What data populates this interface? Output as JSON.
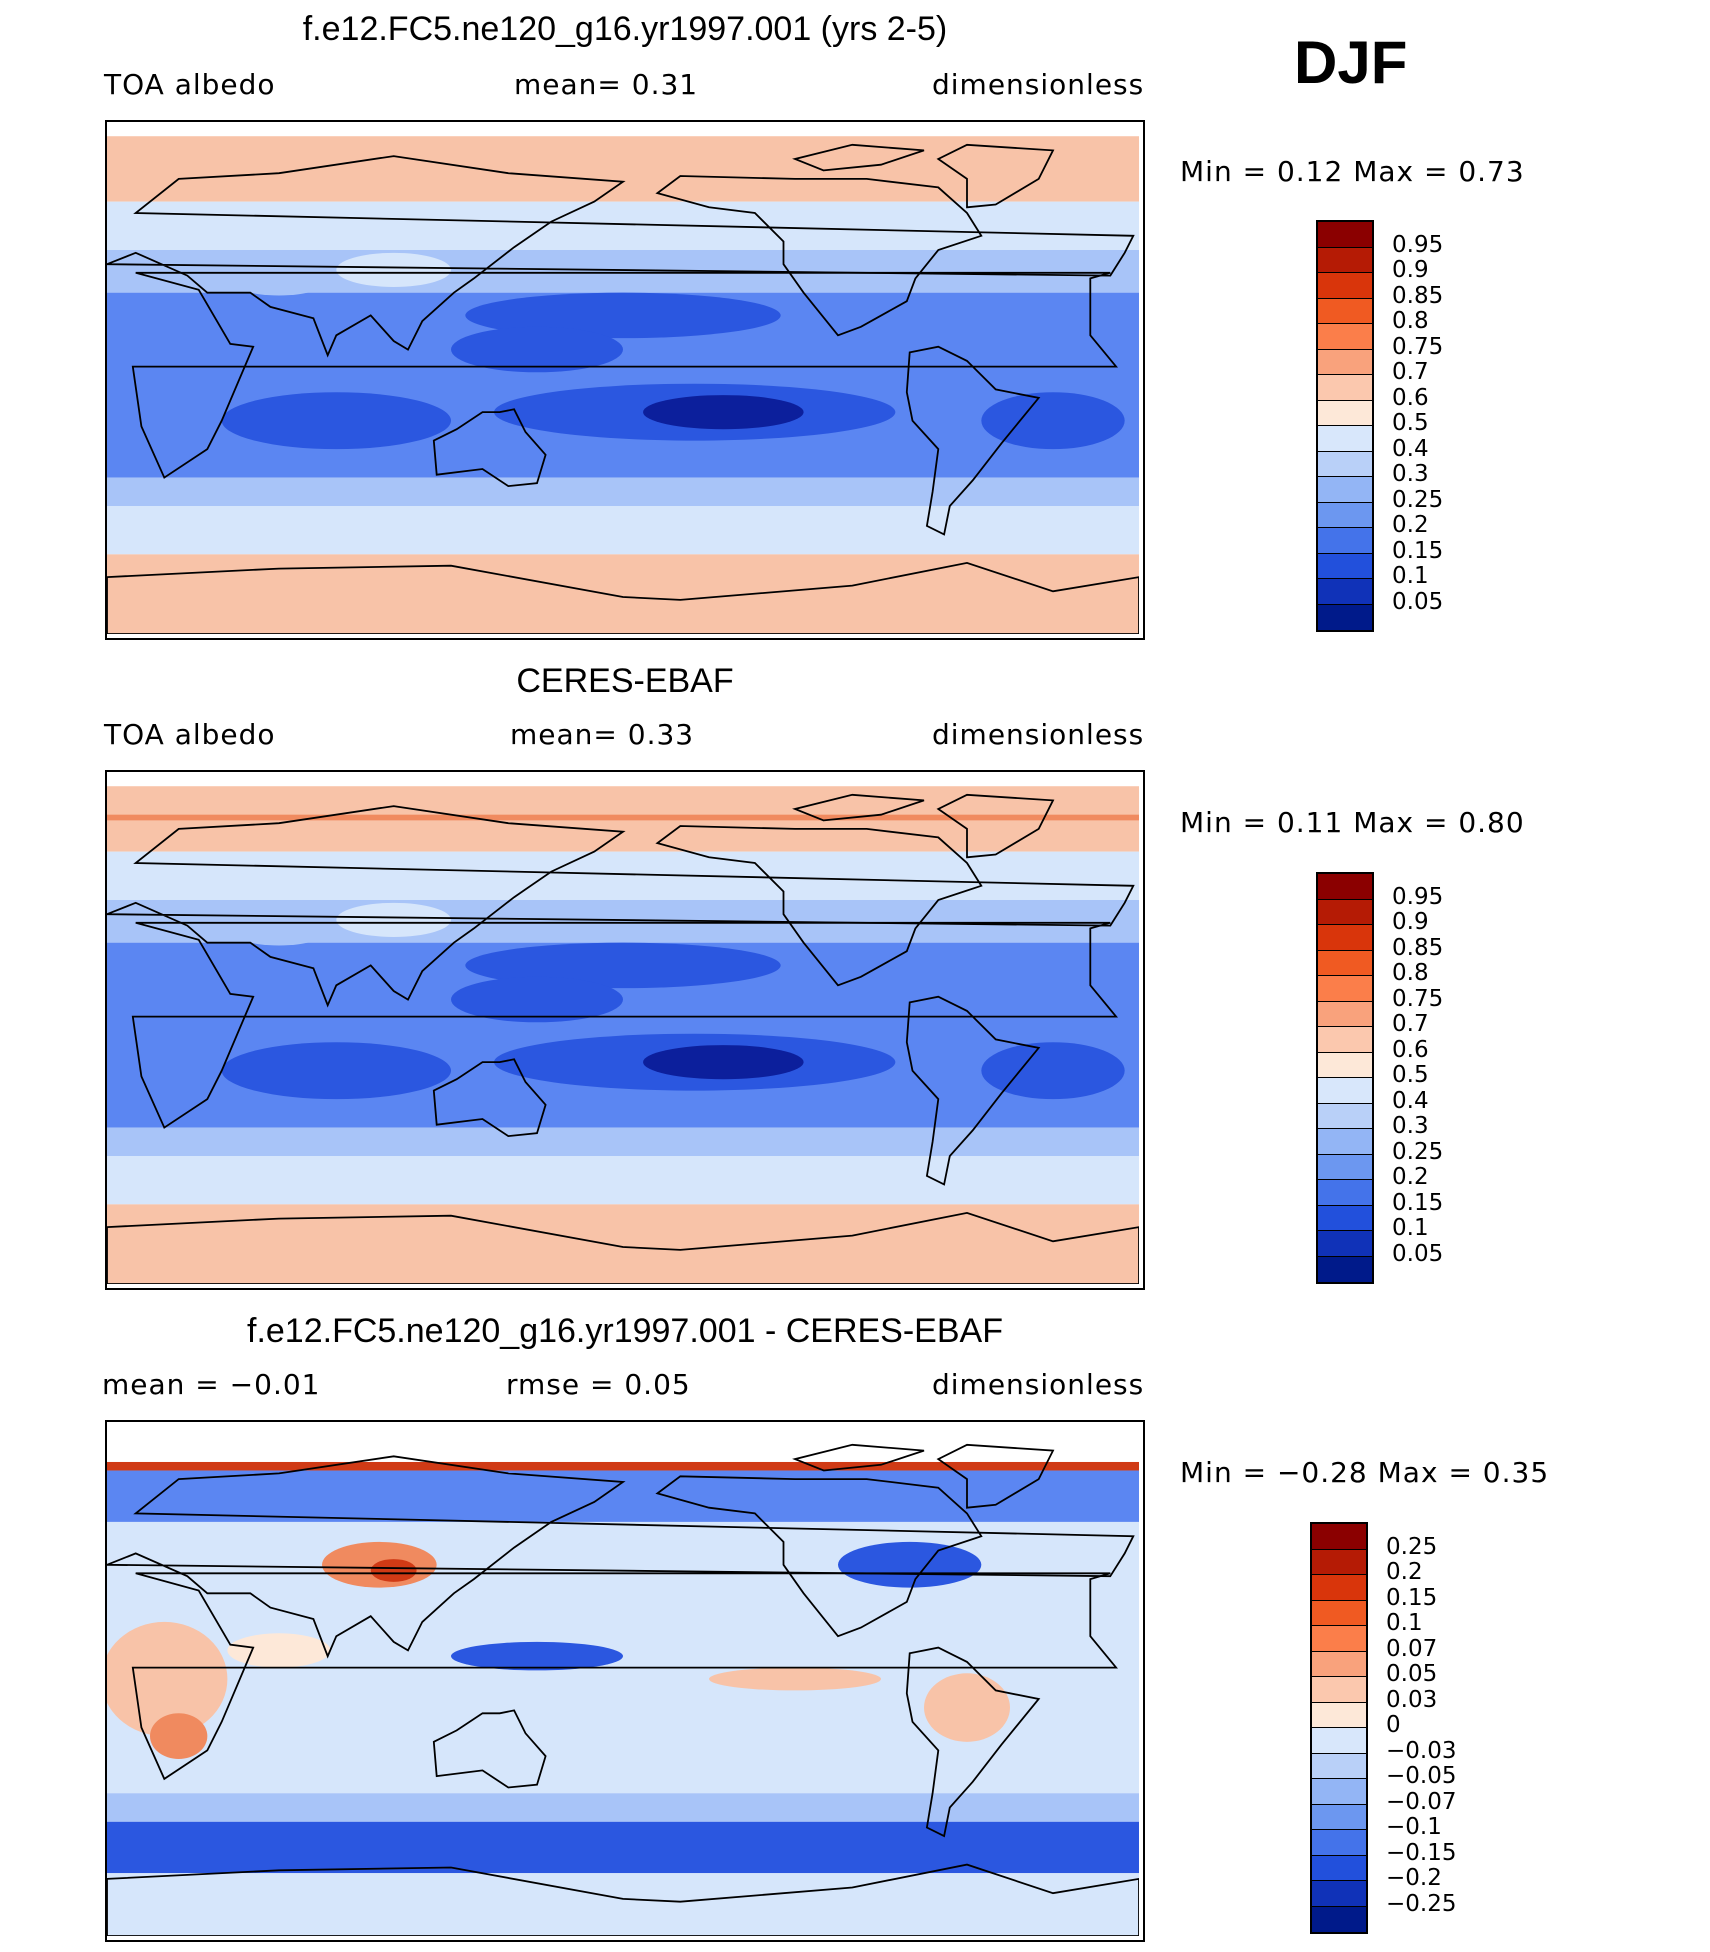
{
  "season": "DJF",
  "colors": {
    "deep_blue": "#0c1f9c",
    "blue": "#2b57e0",
    "mid_blue": "#5b86f2",
    "light_blue": "#a8c4f8",
    "pale_blue": "#d6e6fb",
    "cream": "#fde8d8",
    "salmon": "#f8c3a8",
    "orange": "#f08a5f",
    "red": "#d03a15",
    "dark_red": "#8a0a06"
  },
  "panels": [
    {
      "title": "f.e12.FC5.ne120_g16.yr1997.001 (yrs 2-5)",
      "left_label": "TOA  albedo",
      "mid_label": "mean=    0.31",
      "right_label": "dimensionless",
      "minmax": "Min  =      0.12  Max  =      0.73"
    },
    {
      "title": "CERES-EBAF",
      "left_label": "TOA  albedo",
      "mid_label": "mean=    0.33",
      "right_label": "dimensionless",
      "minmax": "Min  =      0.11  Max  =      0.80"
    },
    {
      "title": "f.e12.FC5.ne120_g16.yr1997.001 - CERES-EBAF",
      "left_label": "mean  =    −0.01",
      "mid_label": "rmse  =     0.05",
      "right_label": "dimensionless",
      "minmax": "Min  =    −0.28  Max  =     0.35"
    }
  ],
  "chart_data": [
    {
      "type": "heatmap",
      "title": "f.e12.FC5.ne120_g16.yr1997.001 (yrs 2-5)",
      "variable": "TOA albedo",
      "units": "dimensionless",
      "mean": 0.31,
      "min": 0.12,
      "max": 0.73,
      "colorbar_colors": [
        "#8b0000",
        "#b51b05",
        "#d9350b",
        "#f05a22",
        "#fb7e4a",
        "#f9a27c",
        "#fbc8ae",
        "#fde8d8",
        "#d8e7fb",
        "#b9d0f8",
        "#93b5f5",
        "#6c97f0",
        "#4473ea",
        "#2250dc",
        "#1032b8",
        "#001a8a"
      ],
      "colorbar_ticks": [
        "0.95",
        "0.9",
        "0.85",
        "0.8",
        "0.75",
        "0.7",
        "0.6",
        "0.5",
        "0.4",
        "0.3",
        "0.25",
        "0.2",
        "0.15",
        "0.1",
        "0.05"
      ]
    },
    {
      "type": "heatmap",
      "title": "CERES-EBAF",
      "variable": "TOA albedo",
      "units": "dimensionless",
      "mean": 0.33,
      "min": 0.11,
      "max": 0.8,
      "colorbar_colors": [
        "#8b0000",
        "#b51b05",
        "#d9350b",
        "#f05a22",
        "#fb7e4a",
        "#f9a27c",
        "#fbc8ae",
        "#fde8d8",
        "#d8e7fb",
        "#b9d0f8",
        "#93b5f5",
        "#6c97f0",
        "#4473ea",
        "#2250dc",
        "#1032b8",
        "#001a8a"
      ],
      "colorbar_ticks": [
        "0.95",
        "0.9",
        "0.85",
        "0.8",
        "0.75",
        "0.7",
        "0.6",
        "0.5",
        "0.4",
        "0.3",
        "0.25",
        "0.2",
        "0.15",
        "0.1",
        "0.05"
      ]
    },
    {
      "type": "heatmap",
      "title": "f.e12.FC5.ne120_g16.yr1997.001 - CERES-EBAF",
      "units": "dimensionless",
      "mean": -0.01,
      "rmse": 0.05,
      "min": -0.28,
      "max": 0.35,
      "colorbar_colors": [
        "#8b0000",
        "#b51b05",
        "#d9350b",
        "#f05a22",
        "#fb7e4a",
        "#f9a27c",
        "#fbc8ae",
        "#fde8d8",
        "#d8e7fb",
        "#b9d0f8",
        "#93b5f5",
        "#6c97f0",
        "#4473ea",
        "#2250dc",
        "#1032b8",
        "#001a8a"
      ],
      "colorbar_ticks": [
        "0.25",
        "0.2",
        "0.15",
        "0.1",
        "0.07",
        "0.05",
        "0.03",
        "0",
        "−0.03",
        "−0.05",
        "−0.07",
        "−0.1",
        "−0.15",
        "−0.2",
        "−0.25"
      ]
    }
  ]
}
